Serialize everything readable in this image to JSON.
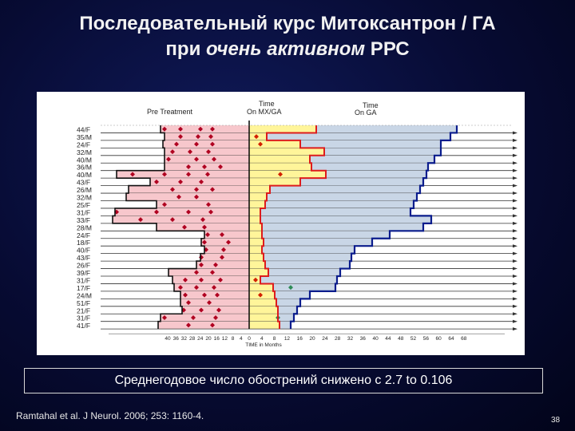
{
  "title": {
    "line1": "Последовательный курс Митоксантрон / ГА",
    "line2_prefix": "при ",
    "line2_italic": "очень активном",
    "line2_suffix": " РРС"
  },
  "figure": {
    "header_pre": "Pre Treatment",
    "header_mx_1": "Time",
    "header_mx_2": "On MX/GA",
    "header_ga_1": "Time",
    "header_ga_2": "On GA",
    "axis_label": "TIME in Months",
    "ticks_left": [
      "40",
      "36",
      "32",
      "28",
      "24",
      "20",
      "16",
      "12",
      "8",
      "4",
      "0"
    ],
    "ticks_right": [
      "4",
      "8",
      "12",
      "16",
      "20",
      "24",
      "28",
      "32",
      "36",
      "40",
      "44",
      "48",
      "52",
      "56",
      "60",
      "64",
      "68"
    ],
    "colors": {
      "pre_fill": "#f7c7cc",
      "mx_fill": "#fff59a",
      "ga_fill": "#c9d6e6",
      "relapse": "#b00020",
      "mx_relapse": "#d22000",
      "outline_red": "#dd1c1c",
      "outline_blue": "#0a1c8c",
      "zero_line": "#111111"
    },
    "patients": [
      "44/F",
      "35/M",
      "24/F",
      "32/M",
      "40/M",
      "36/M",
      "40/M",
      "43/F",
      "26/M",
      "32/M",
      "25/F",
      "31/F",
      "33/F",
      "28/M",
      "24/F",
      "18/F",
      "40/F",
      "43/F",
      "26/F",
      "39/F",
      "31/F",
      "17/F",
      "24/M",
      "51/F",
      "21/F",
      "31/F",
      "41/F"
    ]
  },
  "summary": "Среднегодовое число обострений снижено с 2.7 to 0.106",
  "citation": "Ramtahal et al. J Neurol. 2006; 253: 1160-4.",
  "slide_number": "38"
}
